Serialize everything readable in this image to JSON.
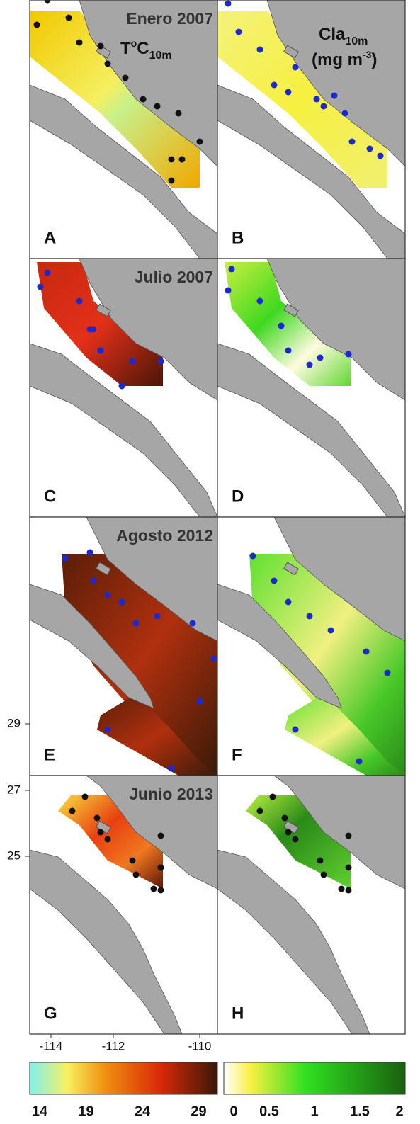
{
  "panels": [
    {
      "letter": "A",
      "title": "Enero 2007"
    },
    {
      "letter": "B"
    },
    {
      "letter": "C",
      "title": "Julio 2007"
    },
    {
      "letter": "D"
    },
    {
      "letter": "E",
      "title": "Agosto 2012"
    },
    {
      "letter": "F"
    },
    {
      "letter": "G",
      "title": "Junio 2013"
    },
    {
      "letter": "H"
    }
  ],
  "temperature_label": {
    "base": "T",
    "sup": "o",
    "unit": "C",
    "sub": "10m"
  },
  "chlorophyll_label": {
    "base": "Cla",
    "sub": "10m",
    "line2": "(mg m",
    "sup": "-3",
    "close": ")"
  },
  "lat_ticks": [
    29,
    27,
    25
  ],
  "lon_ticks": [
    -114,
    -112,
    -110
  ],
  "temperature_scale": [
    14,
    19,
    24,
    29
  ],
  "chlorophyll_scale": [
    0,
    0.5,
    1,
    1.5,
    2
  ]
}
